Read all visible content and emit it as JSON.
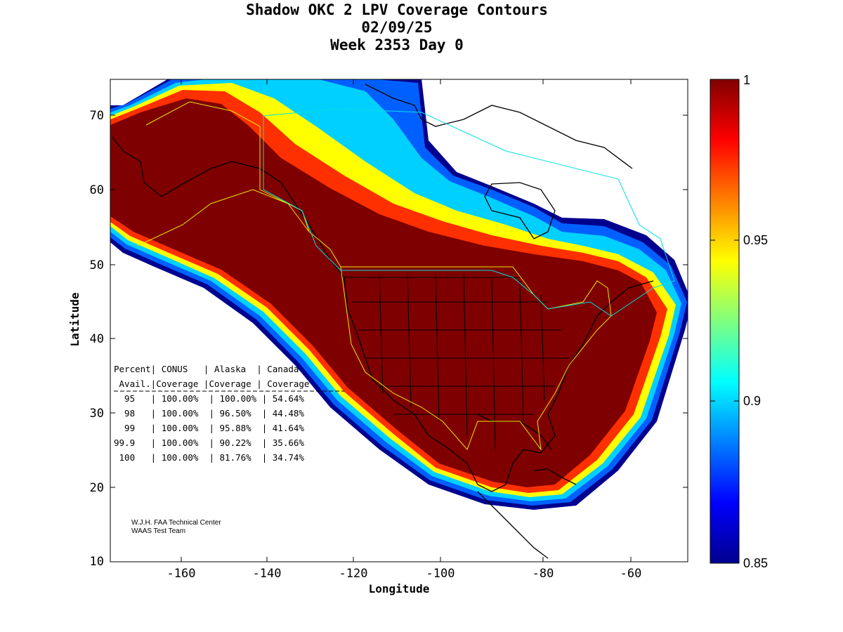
{
  "title": {
    "line1": "Shadow OKC 2 LPV Coverage Contours",
    "line2": "02/09/25",
    "line3": "Week 2353 Day 0"
  },
  "axes": {
    "xlabel": "Longitude",
    "ylabel": "Latitude",
    "xlim": [
      -175,
      -50
    ],
    "ylim": [
      10,
      75
    ],
    "xticks": [
      "-160",
      "-140",
      "-120",
      "-100",
      "-80",
      "-60"
    ],
    "yticks": [
      "10",
      "20",
      "30",
      "40",
      "50",
      "60",
      "70"
    ]
  },
  "colorbar": {
    "range": [
      0.85,
      1
    ],
    "ticks": [
      "1",
      "0.95",
      "0.9",
      "0.85"
    ],
    "colormap": "jet"
  },
  "table": {
    "header1": "Percent| CONUS   | Alaska  | Canada",
    "header2": " Avail.|Coverage |Coverage | Coverage",
    "rows": [
      "  95   | 100.00%  | 100.00% | 54.64%",
      "  98   | 100.00%  | 96.50%  | 44.48%",
      "  99   | 100.00%  | 95.88%  | 41.64%",
      "99.9   | 100.00%  | 90.22%  | 35.66%",
      " 100   | 100.00%  | 81.76%  | 34.74%"
    ]
  },
  "credits": {
    "line1": "W.J.H. FAA Technical Center",
    "line2": "WAAS Test Team"
  },
  "colors": {
    "max_coverage": "#7f0000",
    "boundary_yellow": "#e8e800",
    "boundary_cyan": "#00e0e0"
  }
}
